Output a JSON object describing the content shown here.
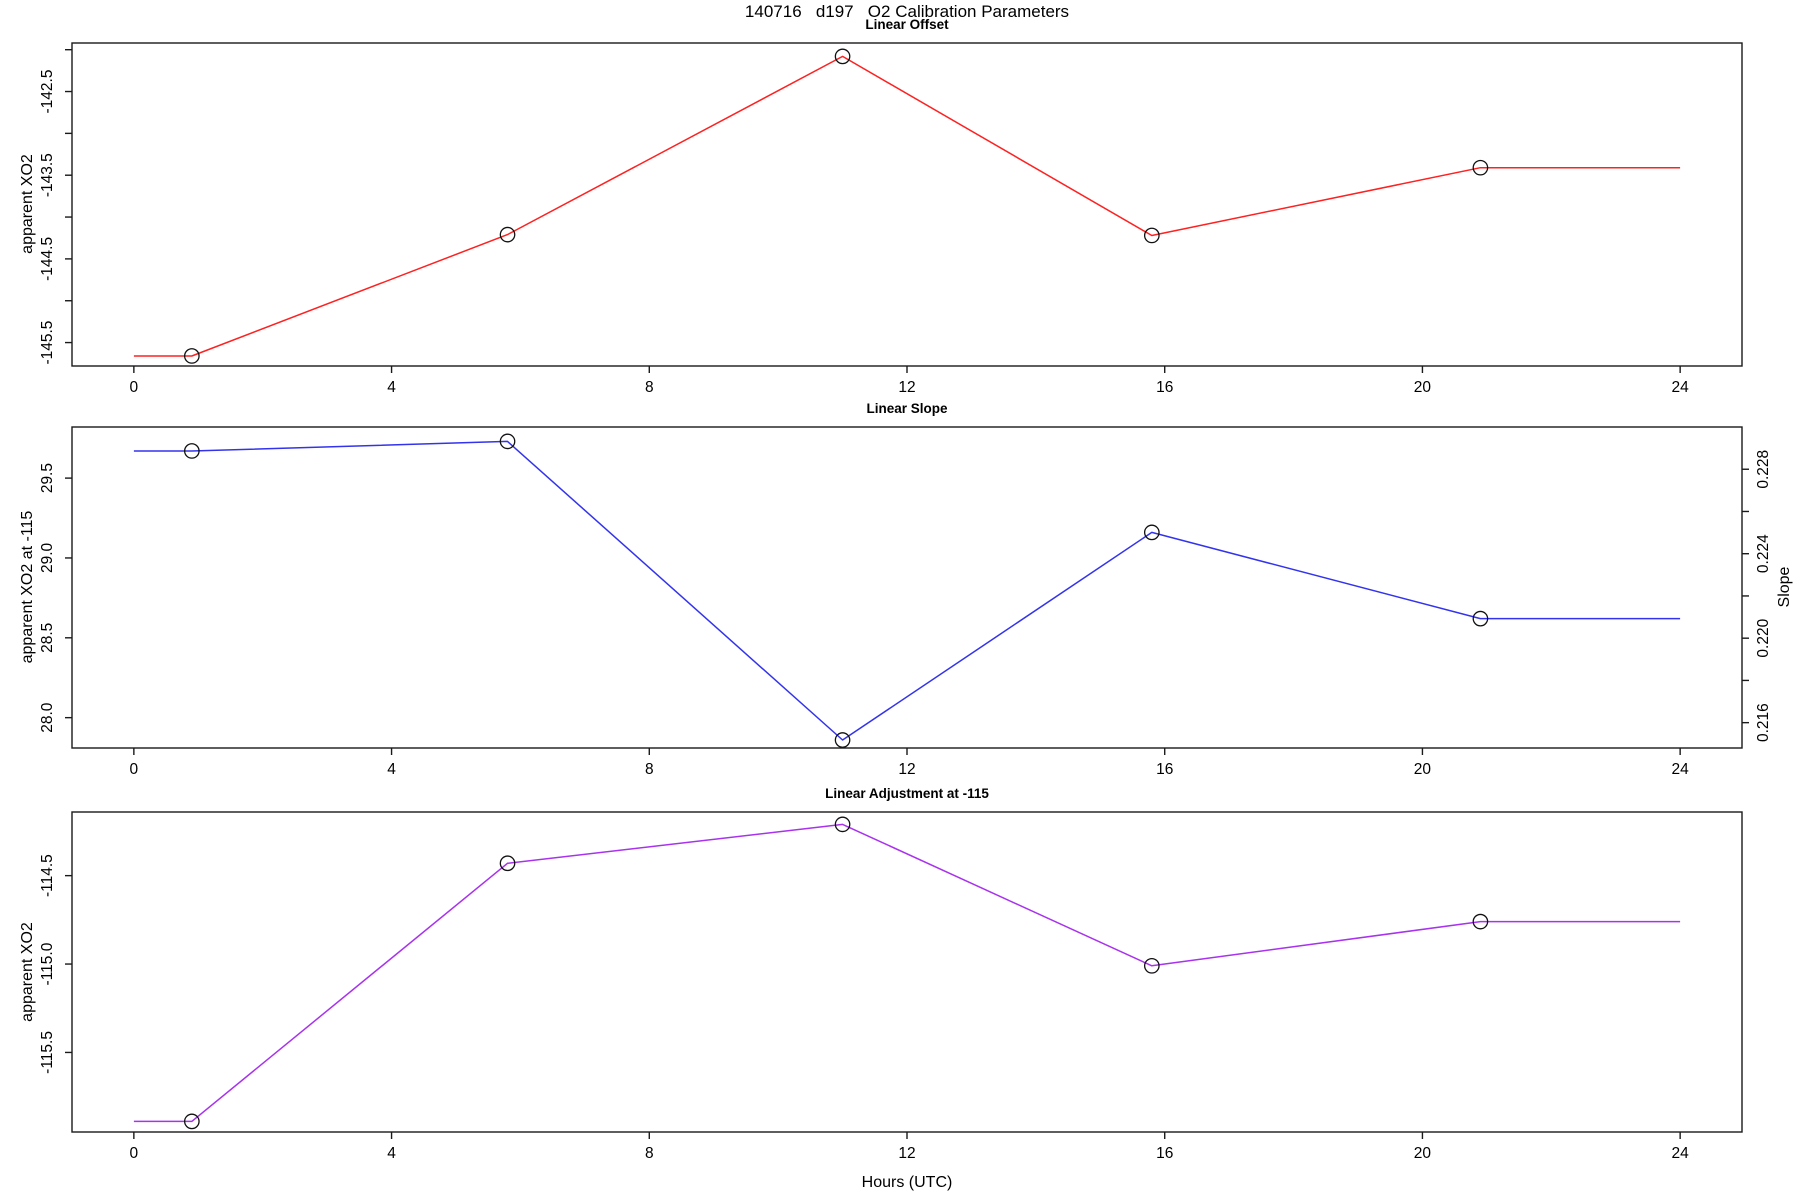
{
  "figure": {
    "main_title": "140716   d197   O2 Calibration Parameters",
    "xlabel": "Hours (UTC)",
    "background_color": "#ffffff",
    "frame_color": "#1a1a1a",
    "marker": "open-circle"
  },
  "chart_data": [
    {
      "type": "line",
      "title": "Linear Offset",
      "ylabel": "apparent XO2",
      "line_color": "#ff2020",
      "x": [
        0.9,
        5.8,
        11.0,
        15.8,
        20.9
      ],
      "y": [
        -145.66,
        -144.21,
        -142.08,
        -144.22,
        -143.41
      ],
      "line_extends_x": [
        0,
        24
      ],
      "xlim": [
        -0.96,
        24.96
      ],
      "ylim": [
        -145.78,
        -141.92
      ],
      "xticks": [
        0,
        4,
        8,
        12,
        16,
        20,
        24
      ],
      "yticks": [
        -145.5,
        -145.0,
        -144.5,
        -144.0,
        -143.5,
        -143.0,
        -142.5,
        -142.0
      ],
      "ytick_labels": [
        "-145.5",
        "",
        "-144.5",
        "",
        "-143.5",
        "",
        "-142.5",
        ""
      ],
      "grid": "off",
      "legend": "none"
    },
    {
      "type": "line",
      "title": "Linear Slope",
      "ylabel": "apparent XO2 at -115",
      "ylabel_right": "Slope",
      "line_color": "#3333ee",
      "x": [
        0.9,
        5.8,
        11.0,
        15.8,
        20.9
      ],
      "y": [
        29.67,
        29.73,
        27.86,
        29.16,
        28.62
      ],
      "y_slope_axis": [
        0.2288,
        0.2293,
        0.2152,
        0.225,
        0.2209
      ],
      "line_extends_x": [
        0,
        24
      ],
      "xlim": [
        -0.96,
        24.96
      ],
      "ylim": [
        27.81,
        29.82
      ],
      "ylim_right": [
        0.2148,
        0.23
      ],
      "xticks": [
        0,
        4,
        8,
        12,
        16,
        20,
        24
      ],
      "yticks": [
        28.0,
        28.5,
        29.0,
        29.5
      ],
      "ytick_labels": [
        "28.0",
        "28.5",
        "29.0",
        "29.5"
      ],
      "yticks_right": [
        0.216,
        0.218,
        0.22,
        0.222,
        0.224,
        0.226,
        0.228
      ],
      "ytick_labels_right": [
        "0.216",
        "",
        "0.220",
        "",
        "0.224",
        "",
        "0.228"
      ],
      "grid": "off",
      "legend": "none"
    },
    {
      "type": "line",
      "title": "Linear Adjustment at -115",
      "ylabel": "apparent XO2",
      "line_color": "#a832ee",
      "x": [
        0.9,
        5.8,
        11.0,
        15.8,
        20.9
      ],
      "y": [
        -115.89,
        -114.43,
        -114.21,
        -115.01,
        -114.76
      ],
      "line_extends_x": [
        0,
        24
      ],
      "xlim": [
        -0.96,
        24.96
      ],
      "ylim": [
        -115.95,
        -114.14
      ],
      "xticks": [
        0,
        4,
        8,
        12,
        16,
        20,
        24
      ],
      "yticks": [
        -115.5,
        -115.0,
        -114.5
      ],
      "ytick_labels": [
        "-115.5",
        "-115.0",
        "-114.5"
      ],
      "grid": "off",
      "legend": "none"
    }
  ]
}
